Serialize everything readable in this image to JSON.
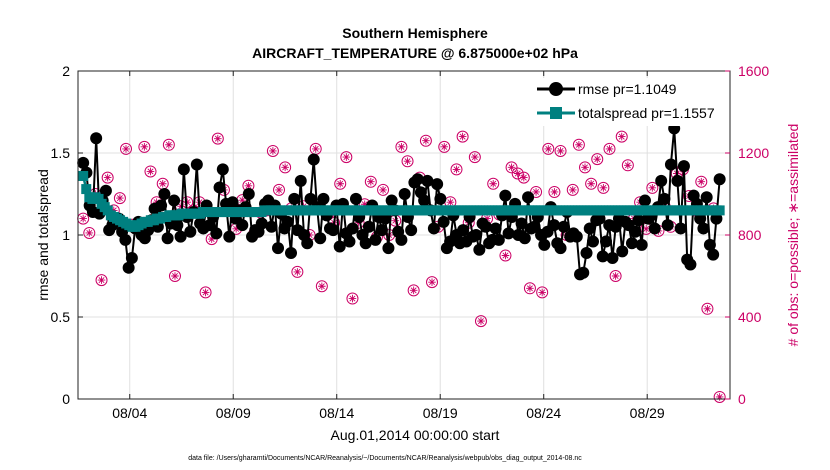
{
  "chart_data": {
    "type": "line",
    "title": "Southern Hemisphere",
    "subtitle": "AIRCRAFT_TEMPERATURE @ 6.875000e+02 hPa",
    "xlabel": "Aug.01,2014 00:00:00 start",
    "ylabel": "rmse and totalspread",
    "y2label": "# of obs: o=possible; ∗=assimilated",
    "footnote": "data file: /Users/gharamti/Documents/NCAR/Reanalysis/~/Documents/NCAR/Reanalysis/webpub/obs_diag_output_2014-08.nc",
    "xlim": [
      1,
      32.5
    ],
    "ylim": [
      0,
      2
    ],
    "y2lim": [
      0,
      1600
    ],
    "xticks": [
      3.5,
      8.5,
      13.5,
      18.5,
      23.5,
      28.5
    ],
    "xtick_labels": [
      "08/04",
      "08/09",
      "08/14",
      "08/19",
      "08/24",
      "08/29"
    ],
    "yticks": [
      0,
      0.5,
      1,
      1.5,
      2
    ],
    "ytick_labels": [
      "0",
      "0.5",
      "1",
      "1.5",
      "2"
    ],
    "y2ticks": [
      0,
      400,
      800,
      1200,
      1600
    ],
    "y2tick_labels": [
      "0",
      "400",
      "800",
      "1200",
      "1600"
    ],
    "grid": true,
    "legend_position": "top-right",
    "colors": {
      "rmse": "#000000",
      "totalspread": "#008080",
      "obs": "#cc0066",
      "grid": "#e0e0e0"
    },
    "obs_marker_note": "circle with asterisk; lone asterisk marks near-equal counts",
    "series": [
      {
        "name": "rmse pr=1.1049",
        "axis": "left",
        "marker": "circle",
        "values": [
          1.44,
          1.38,
          1.18,
          1.14,
          1.59,
          1.13,
          1.21,
          1.27,
          1.03,
          1.06,
          1.08,
          1.1,
          1.02,
          0.97,
          0.8,
          0.86,
          1.04,
          1.08,
          1.0,
          0.98,
          1.03,
          1.09,
          1.16,
          1.05,
          1.18,
          1.25,
          0.98,
          1.07,
          1.21,
          1.06,
          0.99,
          1.4,
          1.11,
          1.02,
          1.14,
          1.43,
          1.07,
          1.04,
          1.18,
          1.06,
          1.11,
          1.01,
          1.29,
          1.4,
          1.19,
          0.99,
          1.2,
          1.1,
          1.15,
          1.06,
          1.17,
          1.25,
          0.99,
          1.03,
          1.02,
          1.07,
          1.19,
          1.21,
          1.05,
          1.18,
          0.92,
          1.13,
          1.04,
          1.08,
          0.89,
          1.22,
          1.03,
          1.33,
          1.0,
          0.95,
          1.22,
          1.46,
          1.17,
          0.98,
          1.22,
          1.12,
          1.04,
          1.03,
          1.18,
          0.93,
          1.19,
          1.01,
          0.96,
          1.04,
          1.22,
          1.11,
          1.0,
          0.95,
          1.05,
          1.18,
          0.97,
          1.11,
          1.03,
          1.1,
          0.92,
          1.21,
          1.15,
          1.02,
          0.97,
          1.25,
          1.11,
          1.03,
          1.32,
          1.34,
          1.26,
          1.21,
          1.33,
          1.15,
          1.04,
          1.31,
          1.22,
          1.08,
          0.92,
          0.96,
          1.12,
          1.0,
          0.95,
          1.03,
          0.96,
          1.11,
          0.99,
          1.0,
          0.91,
          1.07,
          1.05,
          0.95,
          0.97,
          1.04,
          0.97,
          1.12,
          1.24,
          1.01,
          1.11,
          1.19,
          1.0,
          1.07,
          0.98,
          1.23,
          1.04,
          1.05,
          1.11,
          1.0,
          0.94,
          1.02,
          1.17,
          1.06,
          0.95,
          0.92,
          1.05,
          1.14,
          0.99,
          1.01,
          0.99,
          0.76,
          0.77,
          0.89,
          1.04,
          0.96,
          1.09,
          1.1,
          0.87,
          0.96,
          1.06,
          0.86,
          1.05,
          1.1,
          0.9,
          1.08,
          1.06,
          0.95,
          1.02,
          1.09,
          0.94,
          1.21,
          1.1,
          1.12,
          1.04,
          1.17,
          1.33,
          1.22,
          1.06,
          1.43,
          1.65,
          1.33,
          1.04,
          1.42,
          0.85,
          0.82,
          1.24,
          1.19,
          1.1,
          1.04,
          1.23,
          0.94,
          0.88,
          1.1,
          1.34
        ]
      },
      {
        "name": "totalspread pr=1.1557",
        "axis": "left",
        "marker": "square",
        "values": [
          1.36,
          1.28,
          1.23,
          1.22,
          1.23,
          1.22,
          1.19,
          1.17,
          1.15,
          1.12,
          1.11,
          1.1,
          1.09,
          1.08,
          1.07,
          1.06,
          1.05,
          1.05,
          1.06,
          1.07,
          1.08,
          1.08,
          1.09,
          1.09,
          1.1,
          1.1,
          1.11,
          1.11,
          1.12,
          1.12,
          1.12,
          1.12,
          1.13,
          1.13,
          1.13,
          1.13,
          1.13,
          1.13,
          1.13,
          1.14,
          1.14,
          1.14,
          1.14,
          1.14,
          1.14,
          1.14,
          1.14,
          1.14,
          1.14,
          1.14,
          1.14,
          1.14,
          1.14,
          1.14,
          1.14,
          1.14,
          1.14,
          1.14,
          1.14,
          1.15,
          1.15,
          1.15,
          1.15,
          1.15,
          1.15,
          1.15,
          1.15,
          1.15,
          1.15,
          1.15,
          1.15,
          1.15,
          1.15,
          1.15,
          1.15,
          1.15,
          1.15,
          1.15,
          1.15,
          1.15,
          1.15,
          1.15,
          1.15,
          1.15,
          1.15,
          1.15,
          1.15,
          1.15,
          1.15,
          1.15,
          1.15,
          1.15,
          1.15,
          1.15,
          1.15,
          1.15,
          1.15,
          1.15,
          1.15,
          1.15,
          1.15,
          1.15,
          1.15,
          1.15,
          1.15,
          1.15,
          1.15,
          1.15,
          1.15,
          1.15,
          1.15,
          1.15,
          1.15,
          1.15,
          1.15,
          1.15,
          1.15,
          1.15,
          1.15,
          1.15,
          1.15,
          1.15,
          1.15,
          1.15,
          1.15,
          1.15,
          1.15,
          1.15,
          1.15,
          1.15,
          1.15,
          1.15,
          1.15,
          1.15,
          1.15,
          1.15,
          1.15,
          1.15,
          1.15,
          1.15,
          1.15,
          1.15,
          1.15,
          1.15,
          1.15,
          1.15,
          1.15,
          1.15,
          1.15,
          1.15,
          1.15,
          1.15,
          1.15,
          1.15,
          1.15,
          1.15,
          1.15,
          1.15,
          1.15,
          1.15,
          1.15,
          1.15,
          1.15,
          1.15,
          1.15,
          1.15,
          1.15,
          1.15,
          1.15,
          1.15,
          1.15,
          1.15,
          1.15,
          1.15,
          1.15,
          1.15,
          1.15,
          1.15,
          1.15,
          1.15,
          1.15,
          1.15,
          1.15,
          1.15,
          1.15,
          1.15,
          1.15,
          1.15,
          1.15,
          1.15,
          1.15,
          1.15,
          1.15,
          1.15,
          1.15,
          1.15,
          1.15,
          1.15,
          1.15,
          1.15,
          1.15,
          1.15,
          1.15,
          1.15,
          1.15,
          1.15,
          1.15,
          1.15
        ]
      },
      {
        "name": "# of obs",
        "axis": "right",
        "marker": "circle-asterisk",
        "values": [
          880,
          1200,
          810,
          520,
          1000,
          980,
          580,
          430,
          1080,
          1300,
          920,
          880,
          980,
          1000,
          1220,
          1060,
          850,
          540,
          860,
          760,
          1230,
          580,
          1110,
          900,
          960,
          580,
          1050,
          1230,
          1240,
          810,
          600,
          1310,
          940,
          880,
          960,
          1040,
          920,
          560,
          960,
          1240,
          520,
          940,
          780,
          510,
          1270,
          1220,
          1020,
          330,
          920,
          1020,
          830,
          1200,
          970,
          1250,
          1040,
          530,
          810,
          1150,
          910,
          1140,
          920,
          1040,
          1210,
          800,
          1020,
          930,
          1130,
          460,
          930,
          1260,
          620,
          770,
          940,
          1070,
          800,
          940,
          1220,
          1140,
          550,
          1140,
          900,
          980,
          860,
          1050,
          1050,
          740,
          1180,
          1020,
          490,
          1210,
          860,
          620,
          950,
          1000,
          1060,
          540,
          790,
          900,
          1020,
          910,
          800,
          700,
          870,
          540,
          1230,
          880,
          1160,
          810,
          530,
          1200,
          1080,
          790,
          1260,
          1050,
          570,
          860,
          840,
          910,
          1230,
          900,
          960,
          630,
          1120,
          860,
          1280,
          970,
          860,
          1050,
          1180,
          1000,
          380,
          1000,
          880,
          1160,
          1050,
          1060,
          900,
          1240,
          700,
          960,
          1130,
          860,
          1100,
          520,
          1080,
          890,
          540,
          1040,
          1010,
          870,
          520,
          860,
          1220,
          900,
          1010,
          520,
          1210,
          880,
          800,
          1050,
          1020,
          880,
          1240,
          940,
          1130,
          860,
          1050,
          870,
          1170,
          540,
          1030,
          1000,
          1220,
          940,
          600,
          880,
          1280,
          1000,
          1140,
          550,
          880,
          1340,
          960,
          1030,
          830,
          500,
          1030,
          940,
          820,
          1000,
          940,
          790,
          840,
          770,
          1100,
          400,
          1120,
          1170,
          990,
          940,
          920,
          900,
          1060,
          780,
          440,
          1020,
          930,
          500,
          10
        ]
      }
    ]
  }
}
